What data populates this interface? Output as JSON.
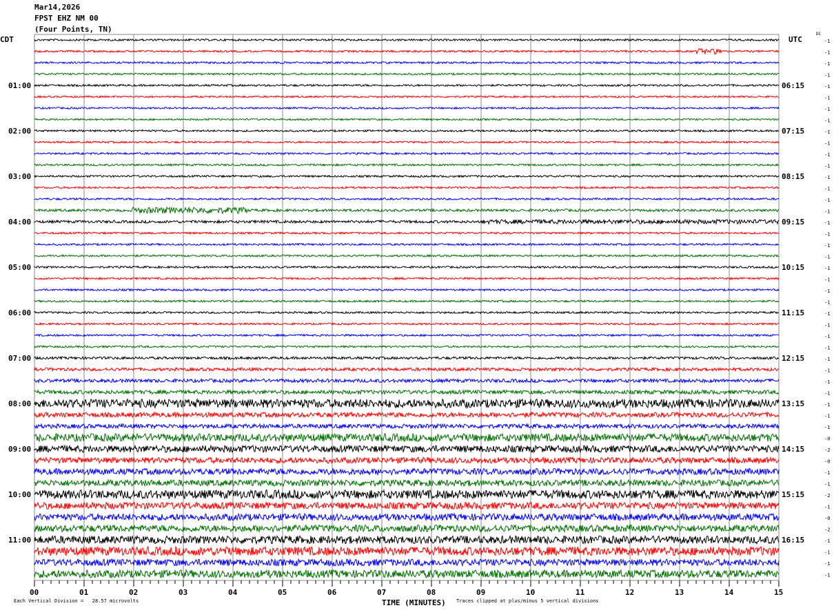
{
  "header": {
    "date": "Mar14,2026",
    "station": "FPST EHZ NM 00",
    "location": "(Four Points, TN)"
  },
  "chart_data": {
    "type": "line",
    "subtype": "helicorder",
    "left_axis_title": "CDT",
    "right_axis_title": "UTC",
    "dc_label": "DC",
    "left_labels": [
      "01:00",
      "02:00",
      "03:00",
      "04:00",
      "05:00",
      "06:00",
      "07:00",
      "08:00",
      "09:00",
      "10:00",
      "11:00"
    ],
    "right_labels": [
      "06:15",
      "07:15",
      "08:15",
      "09:15",
      "10:15",
      "11:15",
      "12:15",
      "13:15",
      "14:15",
      "15:15",
      "16:15"
    ],
    "x_ticks": [
      "00",
      "01",
      "02",
      "03",
      "04",
      "05",
      "06",
      "07",
      "08",
      "09",
      "10",
      "11",
      "12",
      "13",
      "14",
      "15"
    ],
    "xlabel": "TIME (MINUTES)",
    "xlim": [
      0,
      15
    ],
    "grid": true,
    "trace_colors": [
      "#000000",
      "#ff0000",
      "#0000ff",
      "#007000"
    ],
    "dc_offsets": [
      "-1",
      "-1",
      "-1",
      "-1",
      "-1",
      "-1",
      "-1",
      "-1",
      "-1",
      "-1",
      "-1",
      "-1",
      "-1",
      "-1",
      "-1",
      "-1",
      "-1",
      "-1",
      "-1",
      "-1",
      "-1",
      "-1",
      "-1",
      "-1",
      "-1",
      "-1",
      "-1",
      "-1",
      "-1",
      "-1",
      "-1",
      "-1",
      "-1",
      "-1",
      "-1",
      "-0",
      "-2",
      "-0",
      "-1",
      "-1",
      "-2",
      "-1",
      "-0",
      "-2",
      "-1",
      "-1",
      "-1",
      "-1"
    ],
    "relative_amplitude": [
      1,
      1,
      1,
      1,
      1,
      0.9,
      0.9,
      0.9,
      1,
      1,
      1,
      1,
      1,
      1,
      1,
      1.3,
      1.4,
      1,
      1,
      1,
      1,
      1,
      1,
      1,
      1,
      1,
      1,
      1,
      1.3,
      1.6,
      1.8,
      2,
      4.5,
      2.5,
      2.2,
      4,
      3.5,
      3,
      3.2,
      3.2,
      4.5,
      3.5,
      3.5,
      3.5,
      4,
      4.5,
      3.5,
      4
    ],
    "scale_note": "Each Vertical Division =   28.57 microvolts",
    "clip_note": "Traces clipped at plus/minus 5 vertical divisions"
  }
}
